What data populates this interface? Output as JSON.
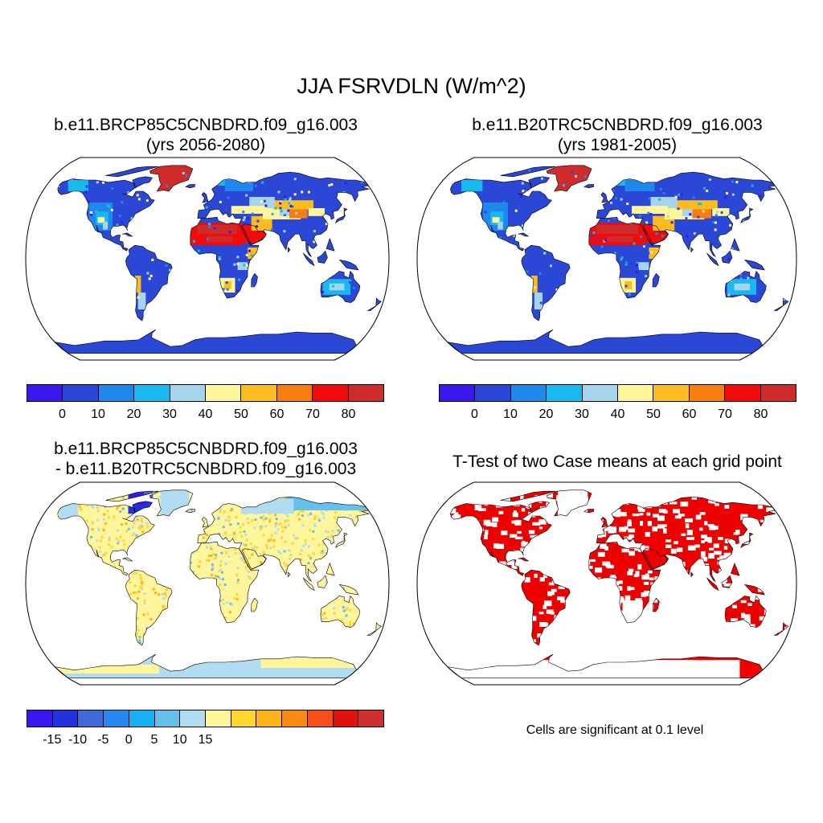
{
  "title": "JJA FSRVDLN (W/m^2)",
  "panels": {
    "top_left": {
      "line1": "b.e11.BRCP85C5CNBDRD.f09_g16.003",
      "line2": "(yrs 2056-2080)"
    },
    "top_right": {
      "line1": "b.e11.B20TRC5CNBDRD.f09_g16.003",
      "line2": "(yrs 1981-2005)"
    },
    "bottom_left": {
      "line1": "b.e11.BRCP85C5CNBDRD.f09_g16.003",
      "line2": "- b.e11.B20TRC5CNBDRD.f09_g16.003"
    },
    "bottom_right": {
      "line1": "T-Test of two Case means at each grid point"
    }
  },
  "colorbar_abs": {
    "colors": [
      "#3b16ee",
      "#2a47d6",
      "#1e88ee",
      "#18b8f0",
      "#a6d4ee",
      "#fff59a",
      "#fdbc1e",
      "#f97d0c",
      "#f20b0b",
      "#d02b2b"
    ],
    "labels": [
      "0",
      "10",
      "20",
      "30",
      "40",
      "50",
      "60",
      "70",
      "80"
    ]
  },
  "colorbar_diff": {
    "colors": [
      "#3b16ee",
      "#2233dd",
      "#3f6ad8",
      "#2688ee",
      "#17b0f2",
      "#66c0ec",
      "#b2dcf2",
      "#fff59a",
      "#fdd730",
      "#fcb41a",
      "#fb8a10",
      "#f9501a",
      "#e0120d",
      "#ce2f2f"
    ],
    "labels": [
      "-15",
      "-10",
      "-5",
      "0",
      "5",
      "10",
      "15"
    ]
  },
  "significance_note": "Cells are significant at 0.1 level",
  "map_colors": {
    "ocean": "#ffffff",
    "outline": "#000000",
    "sig": "#ee0000"
  }
}
